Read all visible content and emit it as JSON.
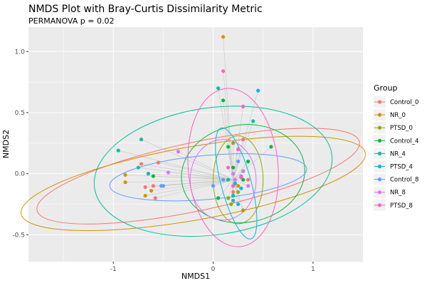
{
  "chart_data": {
    "type": "scatter",
    "title": "NMDS Plot with Bray-Curtis Dissimilarity Metric",
    "subtitle": "PERMANOVA p = 0.02",
    "xlabel": "NMDS1",
    "ylabel": "NMDS2",
    "xlim": [
      -1.85,
      1.5
    ],
    "ylim": [
      -0.72,
      1.2
    ],
    "x_ticks": [
      -1,
      0,
      1
    ],
    "x_tick_labels": [
      "-1",
      "0",
      "1"
    ],
    "y_ticks": [
      -0.5,
      0.0,
      0.5,
      1.0
    ],
    "y_tick_labels": [
      "-0.5",
      "0.0",
      "0.5",
      "1.0"
    ],
    "legend_title": "Group",
    "legend_position": "right",
    "centroid": [
      0.2,
      -0.05
    ],
    "groups": [
      {
        "name": "Control_0",
        "color": "#F8766D",
        "points": [
          [
            -0.6,
            -0.1
          ],
          [
            -0.58,
            -0.2
          ],
          [
            -0.72,
            0.08
          ],
          [
            -0.68,
            -0.11
          ],
          [
            -0.55,
            0.09
          ],
          [
            0.3,
            0.28
          ],
          [
            0.2,
            -0.15
          ],
          [
            0.35,
            -0.05
          ]
        ],
        "ellipse": {
          "cx": -0.15,
          "cy": -0.02,
          "rx": 1.65,
          "ry": 0.28,
          "angle": 12
        }
      },
      {
        "name": "NR_0",
        "color": "#D39200",
        "points": [
          [
            0.1,
            1.12
          ],
          [
            -0.88,
            -0.07
          ],
          [
            -0.68,
            -0.18
          ],
          [
            -0.62,
            -0.14
          ],
          [
            -0.88,
            -0.01
          ],
          [
            0.3,
            -0.3
          ],
          [
            0.25,
            -0.1
          ]
        ],
        "ellipse": {
          "cx": -0.2,
          "cy": -0.08,
          "rx": 1.75,
          "ry": 0.3,
          "angle": 10
        }
      },
      {
        "name": "PTSD_0",
        "color": "#93AA00",
        "points": [
          [
            0.2,
            0.25
          ],
          [
            0.15,
            -0.2
          ],
          [
            0.25,
            -0.15
          ],
          [
            0.3,
            -0.3
          ],
          [
            0.35,
            0.1
          ],
          [
            0.18,
            -0.25
          ]
        ],
        "ellipse": {
          "cx": 0.25,
          "cy": -0.05,
          "rx": 0.25,
          "ry": 0.36,
          "angle": 0
        }
      },
      {
        "name": "Control_4",
        "color": "#00BA38",
        "points": [
          [
            0.58,
            0.22
          ],
          [
            0.15,
            0.22
          ],
          [
            0.2,
            0.05
          ],
          [
            0.05,
            -0.2
          ],
          [
            0.3,
            -0.05
          ],
          [
            0.1,
            0.6
          ],
          [
            0.35,
            0.1
          ],
          [
            -0.6,
            -0.02
          ]
        ],
        "ellipse": {
          "cx": 0.3,
          "cy": 0.0,
          "rx": 0.62,
          "ry": 0.4,
          "angle": 8
        }
      },
      {
        "name": "NR_4",
        "color": "#00C19F",
        "points": [
          [
            0.05,
            0.7
          ],
          [
            -0.95,
            0.19
          ],
          [
            -0.72,
            0.28
          ],
          [
            -0.65,
            0.0
          ],
          [
            0.4,
            0.43
          ],
          [
            0.2,
            -0.18
          ],
          [
            0.15,
            -0.05
          ],
          [
            -0.75,
            0.05
          ]
        ],
        "ellipse": {
          "cx": 0.0,
          "cy": 0.02,
          "rx": 1.2,
          "ry": 0.52,
          "angle": 8
        }
      },
      {
        "name": "PTSD_4",
        "color": "#00B9E3",
        "points": [
          [
            0.45,
            0.68
          ],
          [
            0.3,
            0.02
          ],
          [
            0.22,
            -0.08
          ],
          [
            0.25,
            -0.25
          ],
          [
            0.2,
            -0.22
          ],
          [
            0.28,
            -0.12
          ]
        ],
        "ellipse": {
          "cx": 0.23,
          "cy": -0.08,
          "rx": 0.15,
          "ry": 0.47,
          "angle": 15
        }
      },
      {
        "name": "Control_8",
        "color": "#619CFF",
        "points": [
          [
            0.0,
            -0.1
          ],
          [
            -0.5,
            -0.1
          ],
          [
            -0.52,
            -0.1
          ],
          [
            0.25,
            0.1
          ],
          [
            0.1,
            -0.05
          ],
          [
            0.28,
            -0.02
          ]
        ],
        "ellipse": {
          "cx": -0.05,
          "cy": -0.03,
          "rx": 0.99,
          "ry": 0.18,
          "angle": 5
        }
      },
      {
        "name": "NR_8",
        "color": "#DB72FB",
        "points": [
          [
            -0.35,
            0.18
          ],
          [
            -0.45,
            0.01
          ],
          [
            0.22,
            -0.05
          ],
          [
            0.35,
            -0.1
          ],
          [
            0.3,
            0.02
          ],
          [
            0.2,
            0.0
          ]
        ],
        "ellipse": {
          "cx": 0.1,
          "cy": -0.05,
          "rx": 0.33,
          "ry": 0.33,
          "angle": 0
        }
      },
      {
        "name": "PTSD_8",
        "color": "#FF61C3",
        "points": [
          [
            0.1,
            0.84
          ],
          [
            0.3,
            0.55
          ],
          [
            0.25,
            0.2
          ],
          [
            0.2,
            -0.1
          ],
          [
            0.28,
            -0.03
          ],
          [
            0.15,
            0.05
          ]
        ],
        "ellipse": {
          "cx": 0.2,
          "cy": 0.05,
          "rx": 0.45,
          "ry": 0.65,
          "angle": 5
        }
      }
    ]
  }
}
